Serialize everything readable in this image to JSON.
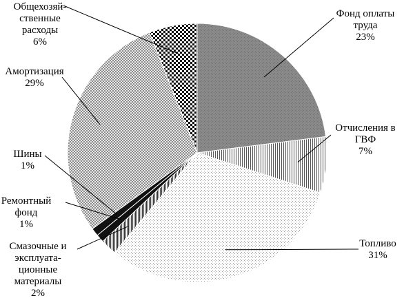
{
  "chart_data": {
    "type": "pie",
    "title": "",
    "slices": [
      {
        "name": "Фонд оплаты труда",
        "value": 23,
        "pct_label": "23%",
        "label_lines": [
          "Фонд оплаты",
          "труда",
          "23%"
        ]
      },
      {
        "name": "Отчисления в ГВФ",
        "value": 7,
        "pct_label": "7%",
        "label_lines": [
          "Отчисления в",
          "ГВФ",
          "7%"
        ]
      },
      {
        "name": "Топливо",
        "value": 31,
        "pct_label": "31%",
        "label_lines": [
          "Топливо",
          "31%"
        ]
      },
      {
        "name": "Смазочные и эксплуатационные материалы",
        "value": 2,
        "pct_label": "2%",
        "label_lines": [
          "Смазочные и",
          "эксплуата-",
          "ционные",
          "материалы",
          "2%"
        ]
      },
      {
        "name": "Ремонтный фонд",
        "value": 1,
        "pct_label": "1%",
        "label_lines": [
          "Ремонтный",
          "фонд",
          "1%"
        ]
      },
      {
        "name": "Шины",
        "value": 1,
        "pct_label": "1%",
        "label_lines": [
          "Шины",
          "1%"
        ]
      },
      {
        "name": "Амортизация",
        "value": 29,
        "pct_label": "29%",
        "label_lines": [
          "Амортизация",
          "29%"
        ]
      },
      {
        "name": "Общехозяйственные расходы",
        "value": 6,
        "pct_label": "6%",
        "label_lines": [
          "Общехозяй-",
          "ственные",
          "расходы",
          "6%"
        ]
      }
    ],
    "legend": "none (leader-line labels)"
  }
}
